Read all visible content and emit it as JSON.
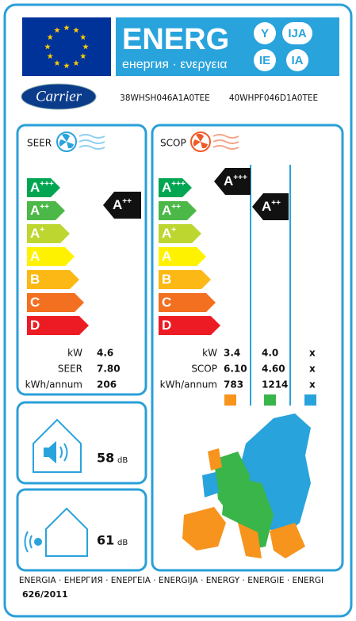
{
  "header": {
    "title": "ENERG",
    "subtitle": "енергия · ενεργεια",
    "badges": [
      "Y",
      "IJA",
      "IE",
      "IA"
    ]
  },
  "brand": "Carrier",
  "models": [
    "38WHSH046A1A0TEE",
    "40WHPF046D1A0TEE"
  ],
  "classes": [
    {
      "letter": "A",
      "sup": "+++"
    },
    {
      "letter": "A",
      "sup": "++"
    },
    {
      "letter": "A",
      "sup": "+"
    },
    {
      "letter": "A",
      "sup": ""
    },
    {
      "letter": "B",
      "sup": ""
    },
    {
      "letter": "C",
      "sup": ""
    },
    {
      "letter": "D",
      "sup": ""
    }
  ],
  "cooling": {
    "label": "SEER",
    "rating": {
      "letter": "A",
      "sup": "++"
    },
    "rows": [
      {
        "label": "kW",
        "value": "4.6"
      },
      {
        "label": "SEER",
        "value": "7.80"
      },
      {
        "label": "kWh/annum",
        "value": "206"
      }
    ]
  },
  "heating": {
    "label": "SCOP",
    "ratings": [
      {
        "letter": "A",
        "sup": "+++"
      },
      {
        "letter": "A",
        "sup": "++"
      }
    ],
    "rows": [
      {
        "label": "kW",
        "values": [
          "3.4",
          "4.0",
          "x"
        ]
      },
      {
        "label": "SCOP",
        "values": [
          "6.10",
          "4.60",
          "x"
        ]
      },
      {
        "label": "kWh/annum",
        "values": [
          "783",
          "1214",
          "x"
        ]
      }
    ]
  },
  "noise": [
    {
      "value": "58",
      "unit": "dB"
    },
    {
      "value": "61",
      "unit": "dB"
    }
  ],
  "footer": {
    "languages": "ENERGIA · ЕНЕРГИЯ · ΕΝΕΡΓΕΙΑ · ENERGIJA · ENERGY · ENERGIE · ENERGI",
    "regulation": "626/2011"
  }
}
